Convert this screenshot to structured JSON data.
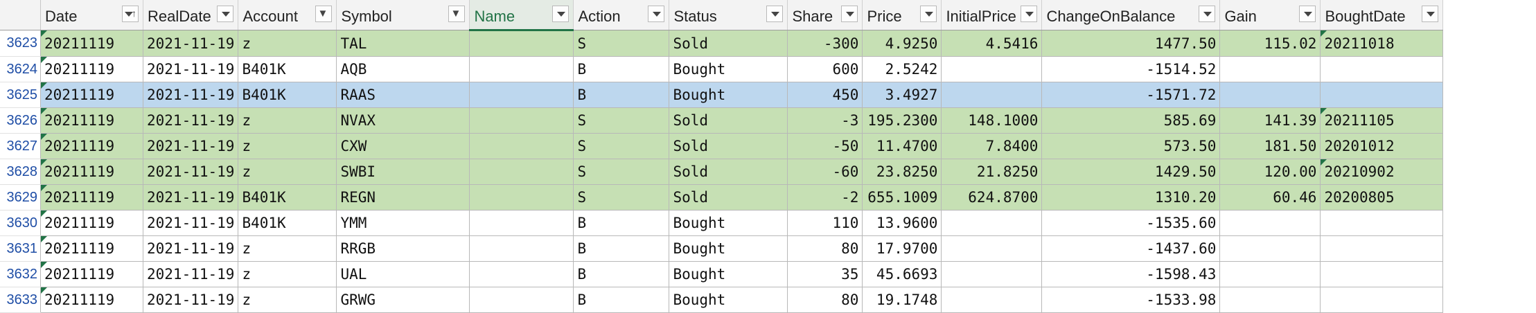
{
  "columns": [
    {
      "label": "Date",
      "filter": "sorted-asc-dropdown"
    },
    {
      "label": "RealDate",
      "filter": "dropdown"
    },
    {
      "label": "Account",
      "filter": "filtered-dropdown"
    },
    {
      "label": "Symbol",
      "filter": "filtered-dropdown"
    },
    {
      "label": "Name",
      "filter": "dropdown"
    },
    {
      "label": "Action",
      "filter": "dropdown"
    },
    {
      "label": "Status",
      "filter": "dropdown"
    },
    {
      "label": "Share",
      "filter": "dropdown"
    },
    {
      "label": "Price",
      "filter": "dropdown"
    },
    {
      "label": "InitialPrice",
      "filter": "dropdown"
    },
    {
      "label": "ChangeOnBalance",
      "filter": "dropdown"
    },
    {
      "label": "Gain",
      "filter": "dropdown"
    },
    {
      "label": "BoughtDate",
      "filter": "dropdown"
    }
  ],
  "selected_column": "Name",
  "rows": [
    {
      "n": "3623",
      "style": "green",
      "cells": [
        "20211119",
        "2021-11-19",
        "z",
        "TAL",
        "",
        "S",
        "Sold",
        "-300",
        "4.9250",
        "4.5416",
        "1477.50",
        "115.02",
        "20211018"
      ]
    },
    {
      "n": "3624",
      "style": "white",
      "cells": [
        "20211119",
        "2021-11-19",
        "B401K",
        "AQB",
        "",
        "B",
        "Bought",
        "600",
        "2.5242",
        "",
        "-1514.52",
        "",
        ""
      ]
    },
    {
      "n": "3625",
      "style": "blue",
      "cells": [
        "20211119",
        "2021-11-19",
        "B401K",
        "RAAS",
        "",
        "B",
        "Bought",
        "450",
        "3.4927",
        "",
        "-1571.72",
        "",
        ""
      ]
    },
    {
      "n": "3626",
      "style": "green",
      "cells": [
        "20211119",
        "2021-11-19",
        "z",
        "NVAX",
        "",
        "S",
        "Sold",
        "-3",
        "195.2300",
        "148.1000",
        "585.69",
        "141.39",
        "20211105"
      ]
    },
    {
      "n": "3627",
      "style": "green",
      "cells": [
        "20211119",
        "2021-11-19",
        "z",
        "CXW",
        "",
        "S",
        "Sold",
        "-50",
        "11.4700",
        "7.8400",
        "573.50",
        "181.50",
        "20201012"
      ]
    },
    {
      "n": "3628",
      "style": "green",
      "cells": [
        "20211119",
        "2021-11-19",
        "z",
        "SWBI",
        "",
        "S",
        "Sold",
        "-60",
        "23.8250",
        "21.8250",
        "1429.50",
        "120.00",
        "20210902"
      ]
    },
    {
      "n": "3629",
      "style": "green",
      "cells": [
        "20211119",
        "2021-11-19",
        "B401K",
        "REGN",
        "",
        "S",
        "Sold",
        "-2",
        "655.1009",
        "624.8700",
        "1310.20",
        "60.46",
        "20200805"
      ]
    },
    {
      "n": "3630",
      "style": "white",
      "cells": [
        "20211119",
        "2021-11-19",
        "B401K",
        "YMM",
        "",
        "B",
        "Bought",
        "110",
        "13.9600",
        "",
        "-1535.60",
        "",
        ""
      ]
    },
    {
      "n": "3631",
      "style": "white",
      "cells": [
        "20211119",
        "2021-11-19",
        "z",
        "RRGB",
        "",
        "B",
        "Bought",
        "80",
        "17.9700",
        "",
        "-1437.60",
        "",
        ""
      ]
    },
    {
      "n": "3632",
      "style": "white",
      "cells": [
        "20211119",
        "2021-11-19",
        "z",
        "UAL",
        "",
        "B",
        "Bought",
        "35",
        "45.6693",
        "",
        "-1598.43",
        "",
        ""
      ]
    },
    {
      "n": "3633",
      "style": "white",
      "cells": [
        "20211119",
        "2021-11-19",
        "z",
        "GRWG",
        "",
        "B",
        "Bought",
        "80",
        "19.1748",
        "",
        "-1533.98",
        "",
        ""
      ]
    }
  ],
  "colors": {
    "sold_row": "#c6e0b4",
    "selected_row": "#bdd7ee",
    "row_number": "#1f4ea6",
    "accent": "#217346"
  }
}
